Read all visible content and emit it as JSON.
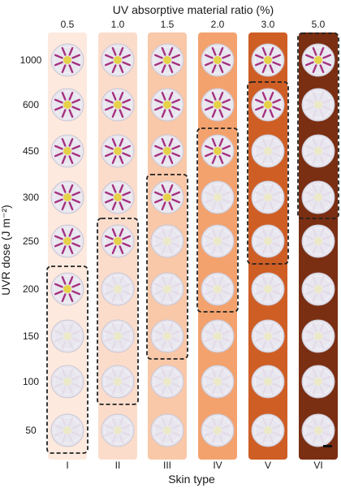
{
  "title": "UV absorptive material ratio (%)",
  "y_axis_label": "UVR dose (J m⁻²)",
  "x_axis_label": "Skin type",
  "columns": [
    {
      "ratio": "0.5",
      "skin_type": "I",
      "color": "#fde9de",
      "activated_from_dose": 200
    },
    {
      "ratio": "1.0",
      "skin_type": "II",
      "color": "#fbdccb",
      "activated_from_dose": 250
    },
    {
      "ratio": "1.5",
      "skin_type": "III",
      "color": "#f9c8a8",
      "activated_from_dose": 300
    },
    {
      "ratio": "2.0",
      "skin_type": "IV",
      "color": "#f3a26e",
      "activated_from_dose": 450
    },
    {
      "ratio": "3.0",
      "skin_type": "V",
      "color": "#cf5e25",
      "activated_from_dose": 600
    },
    {
      "ratio": "5.0",
      "skin_type": "VI",
      "color": "#7a2e12",
      "activated_from_dose": 1000
    }
  ],
  "doses": [
    "1000",
    "600",
    "450",
    "300",
    "250",
    "200",
    "150",
    "100",
    "50"
  ],
  "threshold_doses": [
    "200",
    "250",
    "300",
    "450",
    "600",
    "1000"
  ],
  "colors": {
    "disc": "#e8e6ee",
    "disc_edge": "#c9c6d4",
    "center_active": "#e6d24a",
    "center_inactive": "#ece9c8",
    "ray_active": "#a5307f",
    "ray_inactive": "#e4dbe8",
    "dashed_box": "#222222"
  }
}
